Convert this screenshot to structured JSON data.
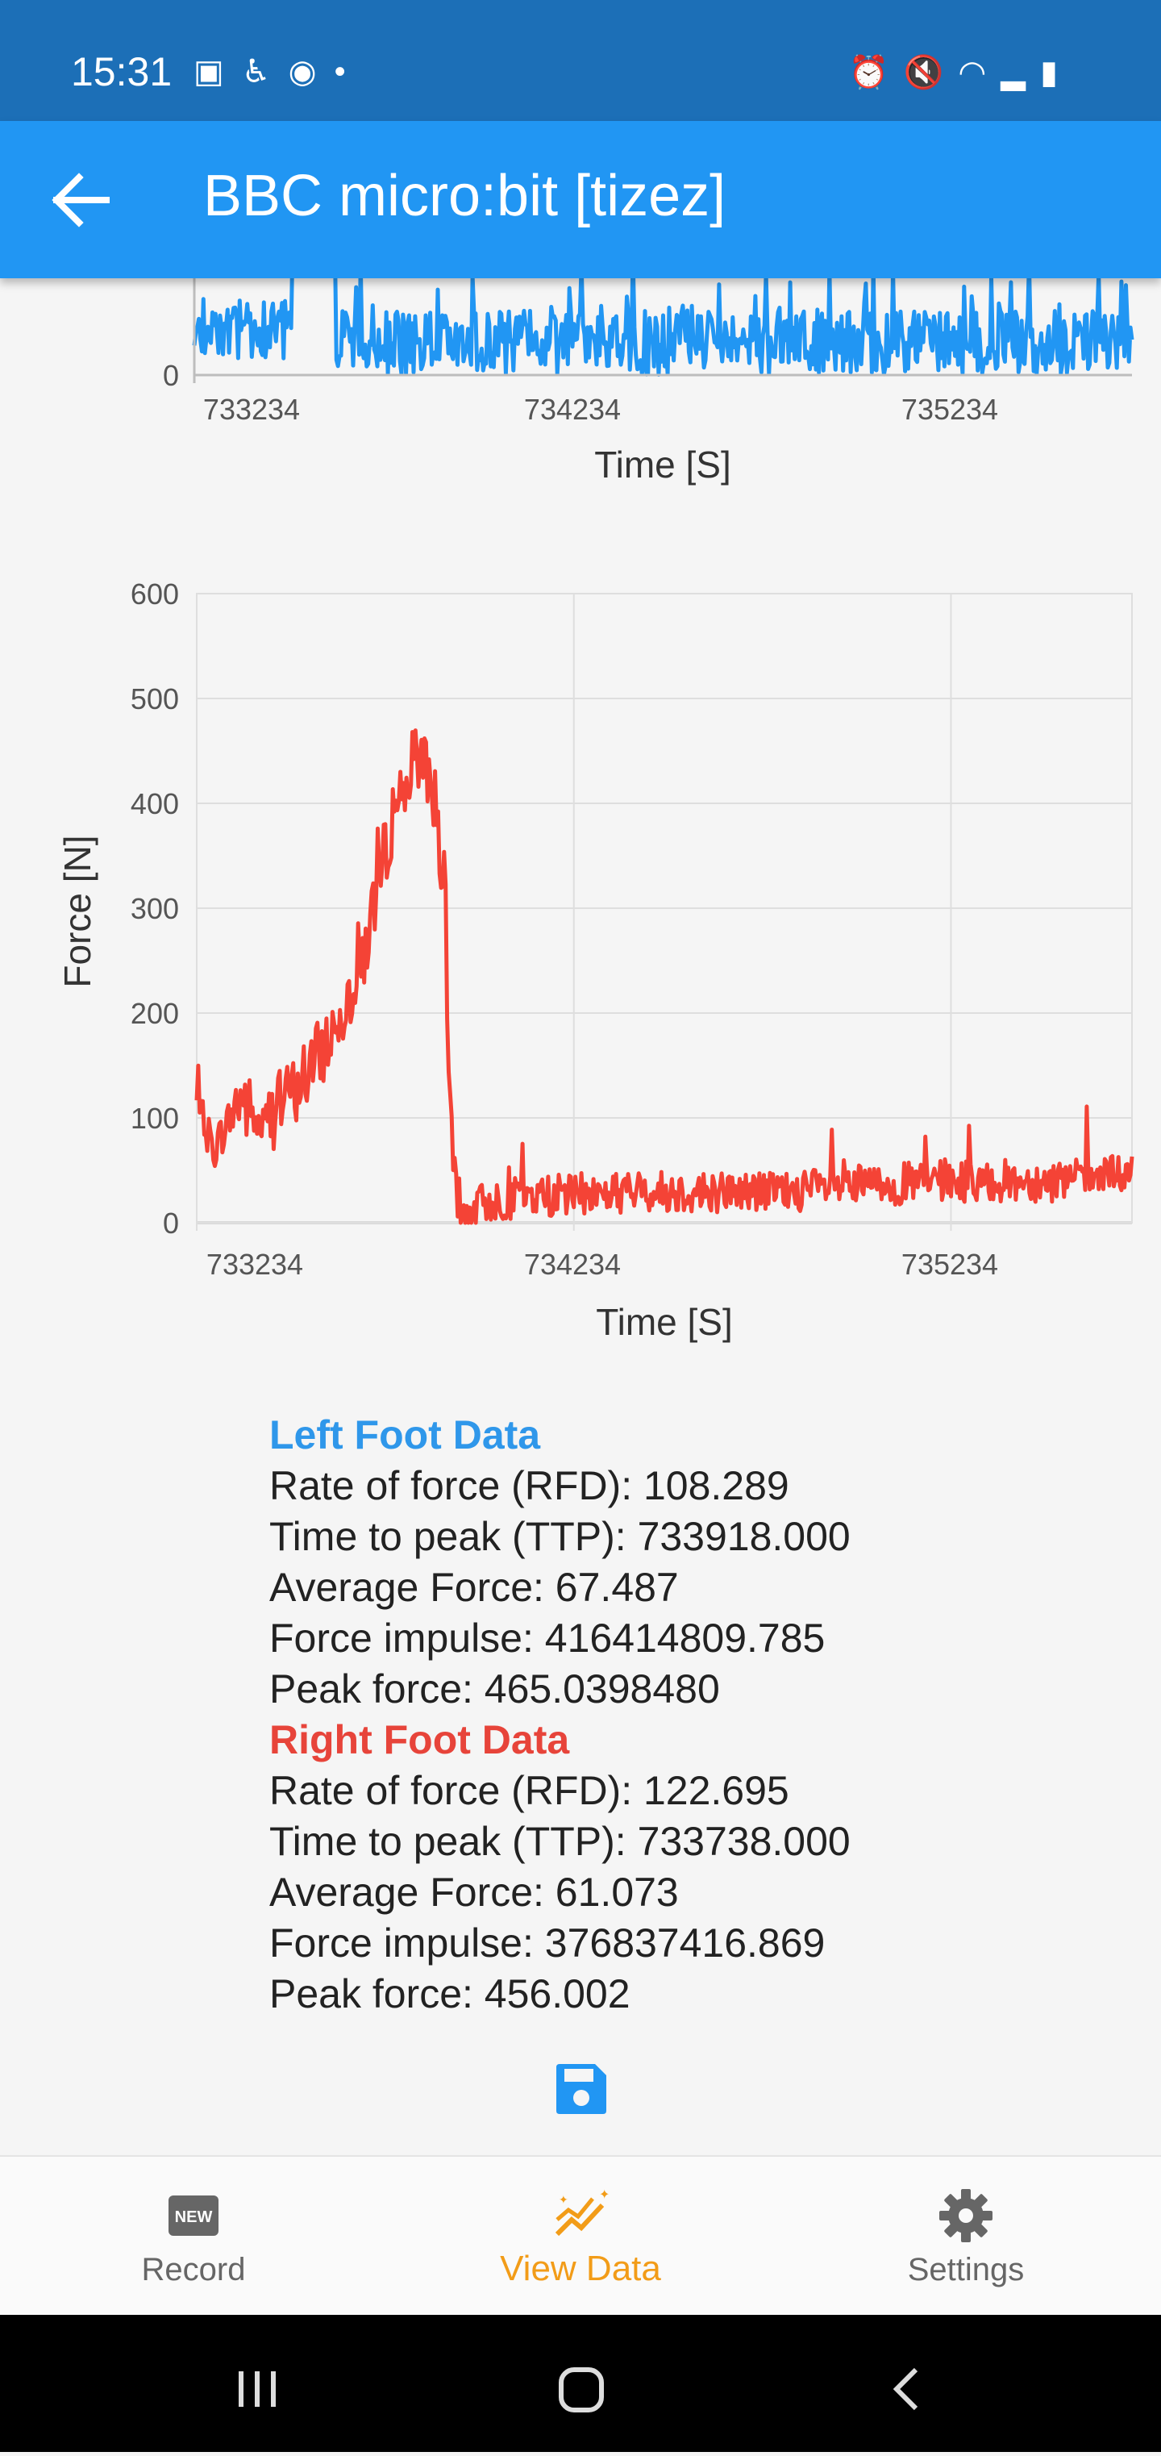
{
  "status_bar": {
    "time": "15:31",
    "left_icons": [
      "gallery-icon",
      "accessibility-icon",
      "messenger-icon",
      "dot-icon"
    ],
    "right_icons": [
      "alarm-icon",
      "mute-icon",
      "wifi-icon",
      "signal-icon",
      "battery-icon"
    ]
  },
  "app_bar": {
    "title": "BBC micro:bit [tizez]"
  },
  "colors": {
    "left": "#2196f3",
    "right": "#f44336",
    "accent": "#2196f3",
    "active_nav": "#f29c18"
  },
  "chart_data": [
    {
      "type": "line",
      "series": [
        {
          "name": "Left Foot",
          "color": "#2196f3"
        }
      ],
      "xlabel": "Time [S]",
      "ylabel": "",
      "x_ticks": [
        "733234",
        "734234",
        "735234"
      ],
      "y_ticks_visible": [
        "0"
      ],
      "xlim": [
        733234,
        735714
      ],
      "note": "partially scrolled out of view"
    },
    {
      "type": "line",
      "series": [
        {
          "name": "Right Foot",
          "color": "#f44336"
        }
      ],
      "xlabel": "Time [S]",
      "ylabel": "Force [N]",
      "x_ticks": [
        "733234",
        "734234",
        "735234"
      ],
      "y_ticks": [
        "0",
        "100",
        "200",
        "300",
        "400",
        "500",
        "600"
      ],
      "xlim": [
        733234,
        735714
      ],
      "ylim": [
        0,
        600
      ],
      "grid": true,
      "profile": [
        [
          733234,
          110
        ],
        [
          733280,
          70
        ],
        [
          733350,
          120
        ],
        [
          733400,
          90
        ],
        [
          733450,
          110
        ],
        [
          733500,
          130
        ],
        [
          733560,
          160
        ],
        [
          733620,
          200
        ],
        [
          733680,
          260
        ],
        [
          733720,
          330
        ],
        [
          733760,
          400
        ],
        [
          733800,
          430
        ],
        [
          733830,
          450
        ],
        [
          733860,
          420
        ],
        [
          733890,
          320
        ],
        [
          733900,
          150
        ],
        [
          733920,
          30
        ],
        [
          733935,
          5
        ],
        [
          734000,
          20
        ],
        [
          734100,
          25
        ],
        [
          734400,
          30
        ],
        [
          734800,
          30
        ],
        [
          735000,
          35
        ],
        [
          735234,
          40
        ],
        [
          735500,
          40
        ],
        [
          735714,
          45
        ]
      ]
    }
  ],
  "stats": {
    "left_heading": "Left Foot Data",
    "left_rfd": "Rate of force (RFD): 108.289",
    "left_ttp": "Time to peak (TTP): 733918.000",
    "left_avg": "Average Force: 67.487",
    "left_impulse": "Force impulse: 416414809.785",
    "left_peak": "Peak force: 465.0398480",
    "right_heading": "Right Foot Data",
    "right_rfd": "Rate of force (RFD): 122.695",
    "right_ttp": "Time to peak (TTP): 733738.000",
    "right_avg": "Average Force: 61.073",
    "right_impulse": "Force impulse: 376837416.869",
    "right_peak": "Peak force: 456.002"
  },
  "bottom_nav": {
    "items": [
      {
        "label": "Record",
        "icon": "new-badge-icon"
      },
      {
        "label": "View Data",
        "icon": "chart-sparkle-icon",
        "active": true
      },
      {
        "label": "Settings",
        "icon": "gear-icon"
      }
    ]
  },
  "system_nav": {
    "icons": [
      "recents-icon",
      "home-icon",
      "back-icon"
    ]
  }
}
